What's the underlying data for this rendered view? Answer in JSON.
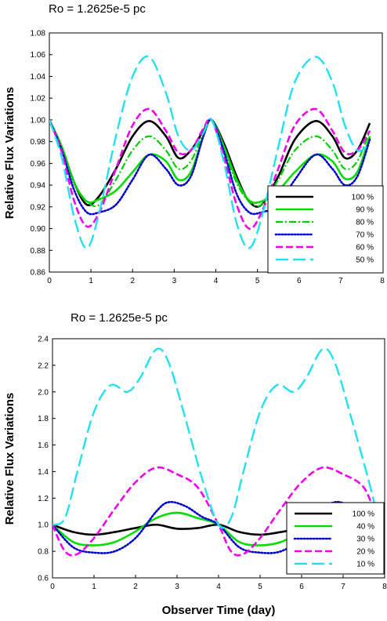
{
  "chart_data": [
    {
      "type": "line",
      "title": "Ro = 1.2625e-5 pc",
      "xlabel": "",
      "ylabel": "Relative Flux Variations",
      "xlim": [
        0,
        8
      ],
      "ylim": [
        0.86,
        1.08
      ],
      "xticks": [
        "0",
        "1",
        "2",
        "3",
        "4",
        "5",
        "6",
        "7",
        "8"
      ],
      "yticks": [
        "0.86",
        "0.88",
        "0.90",
        "0.92",
        "0.94",
        "0.96",
        "0.98",
        "1.00",
        "1.02",
        "1.04",
        "1.06",
        "1.08"
      ],
      "grid": false,
      "legend_position": "bottom-right",
      "series": [
        {
          "name": "100 %",
          "color": "#000000",
          "style": "solid",
          "x": [
            0,
            0.3,
            0.6,
            0.9,
            1.2,
            1.6,
            2.0,
            2.4,
            2.8,
            3.1,
            3.4,
            3.7,
            3.9,
            4.2,
            4.5,
            4.8,
            5.1,
            5.5,
            5.9,
            6.4,
            6.8,
            7.1,
            7.4,
            7.7
          ],
          "y": [
            1.0,
            0.975,
            0.942,
            0.922,
            0.93,
            0.955,
            0.985,
            0.999,
            0.985,
            0.965,
            0.972,
            0.99,
            1.0,
            0.978,
            0.948,
            0.925,
            0.922,
            0.948,
            0.982,
            0.999,
            0.985,
            0.965,
            0.972,
            0.997
          ]
        },
        {
          "name": "90 %",
          "color": "#00dd00",
          "style": "solid",
          "x": [
            0,
            0.3,
            0.6,
            0.9,
            1.2,
            1.6,
            2.0,
            2.4,
            2.8,
            3.1,
            3.4,
            3.7,
            3.9,
            4.2,
            4.5,
            4.8,
            5.1,
            5.5,
            5.9,
            6.4,
            6.8,
            7.1,
            7.4,
            7.7
          ],
          "y": [
            1.0,
            0.975,
            0.942,
            0.925,
            0.927,
            0.935,
            0.952,
            0.968,
            0.962,
            0.945,
            0.952,
            0.985,
            1.0,
            0.975,
            0.945,
            0.926,
            0.925,
            0.935,
            0.952,
            0.968,
            0.962,
            0.946,
            0.952,
            0.985
          ]
        },
        {
          "name": "80 %",
          "color": "#00cc00",
          "style": "dashdot",
          "x": [
            0,
            0.3,
            0.6,
            0.9,
            1.2,
            1.6,
            2.0,
            2.4,
            2.8,
            3.1,
            3.4,
            3.7,
            3.9,
            4.2,
            4.5,
            4.8,
            5.1,
            5.5,
            5.9,
            6.4,
            6.8,
            7.1,
            7.4,
            7.7
          ],
          "y": [
            1.0,
            0.972,
            0.942,
            0.925,
            0.922,
            0.945,
            0.972,
            0.985,
            0.972,
            0.955,
            0.962,
            0.988,
            1.0,
            0.972,
            0.942,
            0.925,
            0.922,
            0.945,
            0.972,
            0.985,
            0.972,
            0.955,
            0.962,
            0.99
          ]
        },
        {
          "name": "70 %",
          "color": "#0000cc",
          "style": "dotted",
          "x": [
            0,
            0.3,
            0.6,
            0.9,
            1.2,
            1.6,
            2.0,
            2.4,
            2.8,
            3.1,
            3.4,
            3.7,
            3.9,
            4.2,
            4.5,
            4.8,
            5.1,
            5.5,
            5.9,
            6.4,
            6.8,
            7.1,
            7.4,
            7.7
          ],
          "y": [
            1.0,
            0.972,
            0.935,
            0.915,
            0.915,
            0.922,
            0.945,
            0.968,
            0.955,
            0.94,
            0.948,
            0.985,
            1.0,
            0.97,
            0.932,
            0.915,
            0.915,
            0.922,
            0.945,
            0.968,
            0.955,
            0.94,
            0.948,
            0.982
          ]
        },
        {
          "name": "60 %",
          "color": "#ee00ee",
          "style": "dashed",
          "x": [
            0,
            0.3,
            0.6,
            0.9,
            1.2,
            1.6,
            2.0,
            2.4,
            2.8,
            3.1,
            3.4,
            3.7,
            3.9,
            4.2,
            4.5,
            4.8,
            5.1,
            5.5,
            5.9,
            6.4,
            6.8,
            7.1,
            7.4,
            7.7
          ],
          "y": [
            1.0,
            0.97,
            0.925,
            0.902,
            0.915,
            0.955,
            0.995,
            1.01,
            0.99,
            0.97,
            0.972,
            0.992,
            1.0,
            0.965,
            0.922,
            0.9,
            0.915,
            0.955,
            0.995,
            1.01,
            0.99,
            0.97,
            0.972,
            0.99
          ]
        },
        {
          "name": "50 %",
          "color": "#22e0f0",
          "style": "longdash",
          "x": [
            0,
            0.3,
            0.6,
            0.9,
            1.2,
            1.6,
            2.0,
            2.4,
            2.8,
            3.1,
            3.4,
            3.7,
            3.9,
            4.2,
            4.5,
            4.8,
            5.1,
            5.5,
            5.9,
            6.4,
            6.8,
            7.1,
            7.4,
            7.7
          ],
          "y": [
            1.0,
            0.965,
            0.91,
            0.882,
            0.915,
            0.985,
            1.04,
            1.058,
            1.025,
            0.985,
            0.972,
            0.988,
            1.0,
            0.96,
            0.905,
            0.882,
            0.91,
            0.975,
            1.035,
            1.058,
            1.035,
            0.995,
            0.972,
            0.978
          ]
        }
      ]
    },
    {
      "type": "line",
      "title": "Ro = 1.2625e-5 pc",
      "xlabel": "Observer Time (day)",
      "ylabel": "Relative Flux Variations",
      "xlim": [
        0,
        8
      ],
      "ylim": [
        0.6,
        2.4
      ],
      "xticks": [
        "0",
        "1",
        "2",
        "3",
        "4",
        "5",
        "6",
        "7",
        "8"
      ],
      "yticks": [
        "0.6",
        "0.8",
        "1.0",
        "1.2",
        "1.4",
        "1.6",
        "1.8",
        "2.0",
        "2.2",
        "2.4"
      ],
      "grid": false,
      "legend_position": "bottom-right",
      "series": [
        {
          "name": "100 %",
          "color": "#000000",
          "style": "solid",
          "x": [
            0,
            0.5,
            1.0,
            1.5,
            2.0,
            2.5,
            3.0,
            3.5,
            4.0,
            4.5,
            5.0,
            5.5,
            6.0,
            6.5,
            7.0,
            7.5,
            7.8
          ],
          "y": [
            1.0,
            0.945,
            0.925,
            0.945,
            0.975,
            1.0,
            0.97,
            0.975,
            1.0,
            0.945,
            0.925,
            0.945,
            0.975,
            1.0,
            0.97,
            0.975,
            1.0
          ]
        },
        {
          "name": "40 %",
          "color": "#00dd00",
          "style": "solid",
          "x": [
            0,
            0.5,
            1.0,
            1.5,
            2.0,
            2.5,
            3.0,
            3.5,
            4.0,
            4.5,
            5.0,
            5.5,
            6.0,
            6.5,
            7.0,
            7.5,
            7.8
          ],
          "y": [
            1.0,
            0.87,
            0.845,
            0.87,
            0.95,
            1.05,
            1.09,
            1.05,
            1.0,
            0.87,
            0.845,
            0.87,
            0.95,
            1.05,
            1.09,
            1.05,
            1.0
          ]
        },
        {
          "name": "30 %",
          "color": "#0000cc",
          "style": "dotted",
          "x": [
            0,
            0.5,
            1.0,
            1.5,
            2.0,
            2.5,
            2.8,
            3.2,
            3.6,
            4.0,
            4.5,
            5.0,
            5.5,
            6.0,
            6.5,
            6.8,
            7.2,
            7.6,
            7.8
          ],
          "y": [
            1.0,
            0.83,
            0.79,
            0.8,
            0.9,
            1.1,
            1.17,
            1.14,
            1.06,
            1.0,
            0.83,
            0.79,
            0.8,
            0.9,
            1.1,
            1.17,
            1.14,
            1.06,
            1.0
          ]
        },
        {
          "name": "20 %",
          "color": "#ee00ee",
          "style": "dashed",
          "x": [
            0,
            0.3,
            0.6,
            1.0,
            1.5,
            2.0,
            2.5,
            3.0,
            3.5,
            4.0,
            4.3,
            4.6,
            5.0,
            5.5,
            6.0,
            6.5,
            7.0,
            7.5,
            7.8
          ],
          "y": [
            1.0,
            0.8,
            0.78,
            0.9,
            1.12,
            1.32,
            1.43,
            1.38,
            1.28,
            1.0,
            0.8,
            0.78,
            0.9,
            1.12,
            1.32,
            1.43,
            1.38,
            1.28,
            1.05
          ]
        },
        {
          "name": "10 %",
          "color": "#22e0f0",
          "style": "longdash",
          "x": [
            0,
            0.3,
            0.6,
            1.0,
            1.4,
            1.8,
            2.1,
            2.5,
            2.8,
            3.2,
            3.6,
            4.0,
            4.3,
            4.6,
            5.0,
            5.4,
            5.8,
            6.1,
            6.5,
            6.8,
            7.2,
            7.6,
            7.8
          ],
          "y": [
            1.0,
            1.05,
            1.4,
            1.85,
            2.05,
            2.0,
            2.1,
            2.32,
            2.22,
            1.8,
            1.35,
            1.0,
            1.05,
            1.4,
            1.85,
            2.05,
            2.0,
            2.1,
            2.32,
            2.22,
            1.8,
            1.35,
            1.1
          ]
        }
      ]
    }
  ]
}
